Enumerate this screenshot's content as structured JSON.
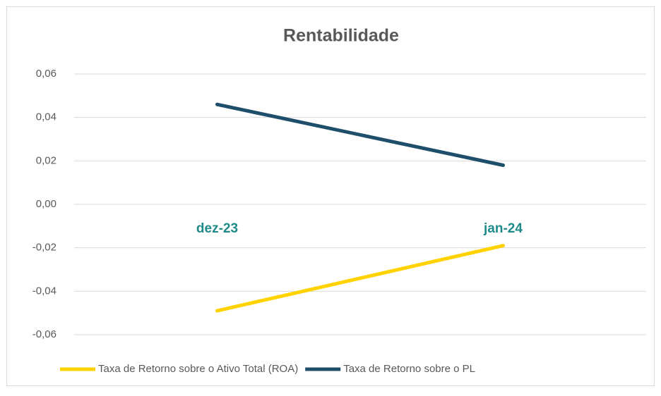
{
  "chart_data": {
    "type": "line",
    "title": "Rentabilidade",
    "categories": [
      "dez-23",
      "jan-24"
    ],
    "series": [
      {
        "name": "Taxa de Retorno sobre o Ativo Total (ROA)",
        "color": "#ffd200",
        "values": [
          -0.049,
          -0.019
        ]
      },
      {
        "name": "Taxa de Retorno sobre o PL",
        "color": "#1f4e6b",
        "values": [
          0.046,
          0.018
        ]
      }
    ],
    "ylim": [
      -0.06,
      0.06
    ],
    "yticks": [
      {
        "value": -0.06,
        "label": "-0,06"
      },
      {
        "value": -0.04,
        "label": "-0,04"
      },
      {
        "value": -0.02,
        "label": "-0,02"
      },
      {
        "value": 0,
        "label": "0,00"
      },
      {
        "value": 0.02,
        "label": "0,02"
      },
      {
        "value": 0.04,
        "label": "0,04"
      },
      {
        "value": 0.06,
        "label": "0,06"
      }
    ],
    "grid": true,
    "legend": "bottom"
  }
}
